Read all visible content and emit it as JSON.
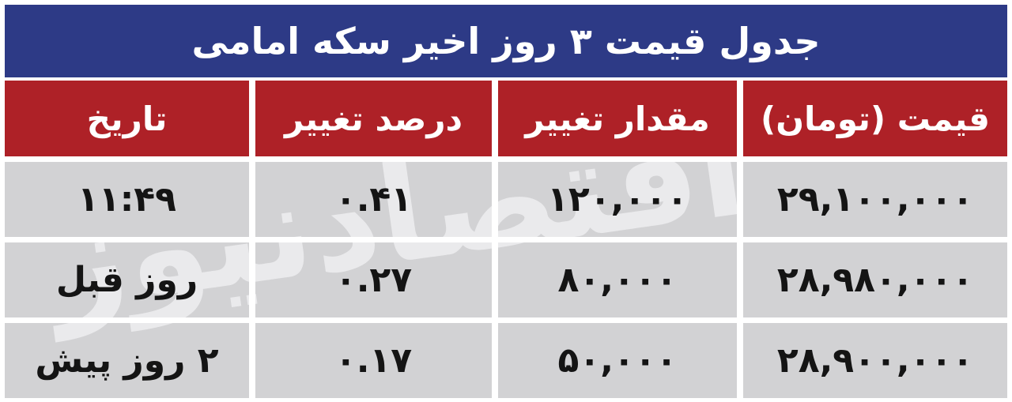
{
  "chart_data": {
    "type": "table",
    "title": "جدول قیمت ۳ روز اخیر سکه امامی",
    "columns": {
      "price": "قیمت (تومان)",
      "change_amount": "مقدار تغییر",
      "change_percent": "درصد تغییر",
      "date": "تاریخ"
    },
    "rows": [
      {
        "price": "۲۹,۱۰۰,۰۰۰",
        "change_amount": "۱۲۰,۰۰۰",
        "change_percent": "۰.۴۱",
        "date": "۱۱:۴۹"
      },
      {
        "price": "۲۸,۹۸۰,۰۰۰",
        "change_amount": "۸۰,۰۰۰",
        "change_percent": "۰.۲۷",
        "date": "روز قبل"
      },
      {
        "price": "۲۸,۹۰۰,۰۰۰",
        "change_amount": "۵۰,۰۰۰",
        "change_percent": "۰.۱۷",
        "date": "۲ روز پیش"
      }
    ],
    "watermark": "اقتصادنیوز",
    "layout": {
      "direction": "rtl",
      "visual_column_order_right_to_left": [
        "price",
        "change_amount",
        "change_percent",
        "date"
      ],
      "grid": "on-white-gaps"
    },
    "colors": {
      "title_bg": "#2d3a86",
      "header_bg": "#ae2127",
      "row_bg": "#d2d2d4",
      "header_text": "#ffffff",
      "cell_text": "#141414",
      "watermark": "#eaeaec",
      "page_bg": "#ffffff"
    }
  }
}
